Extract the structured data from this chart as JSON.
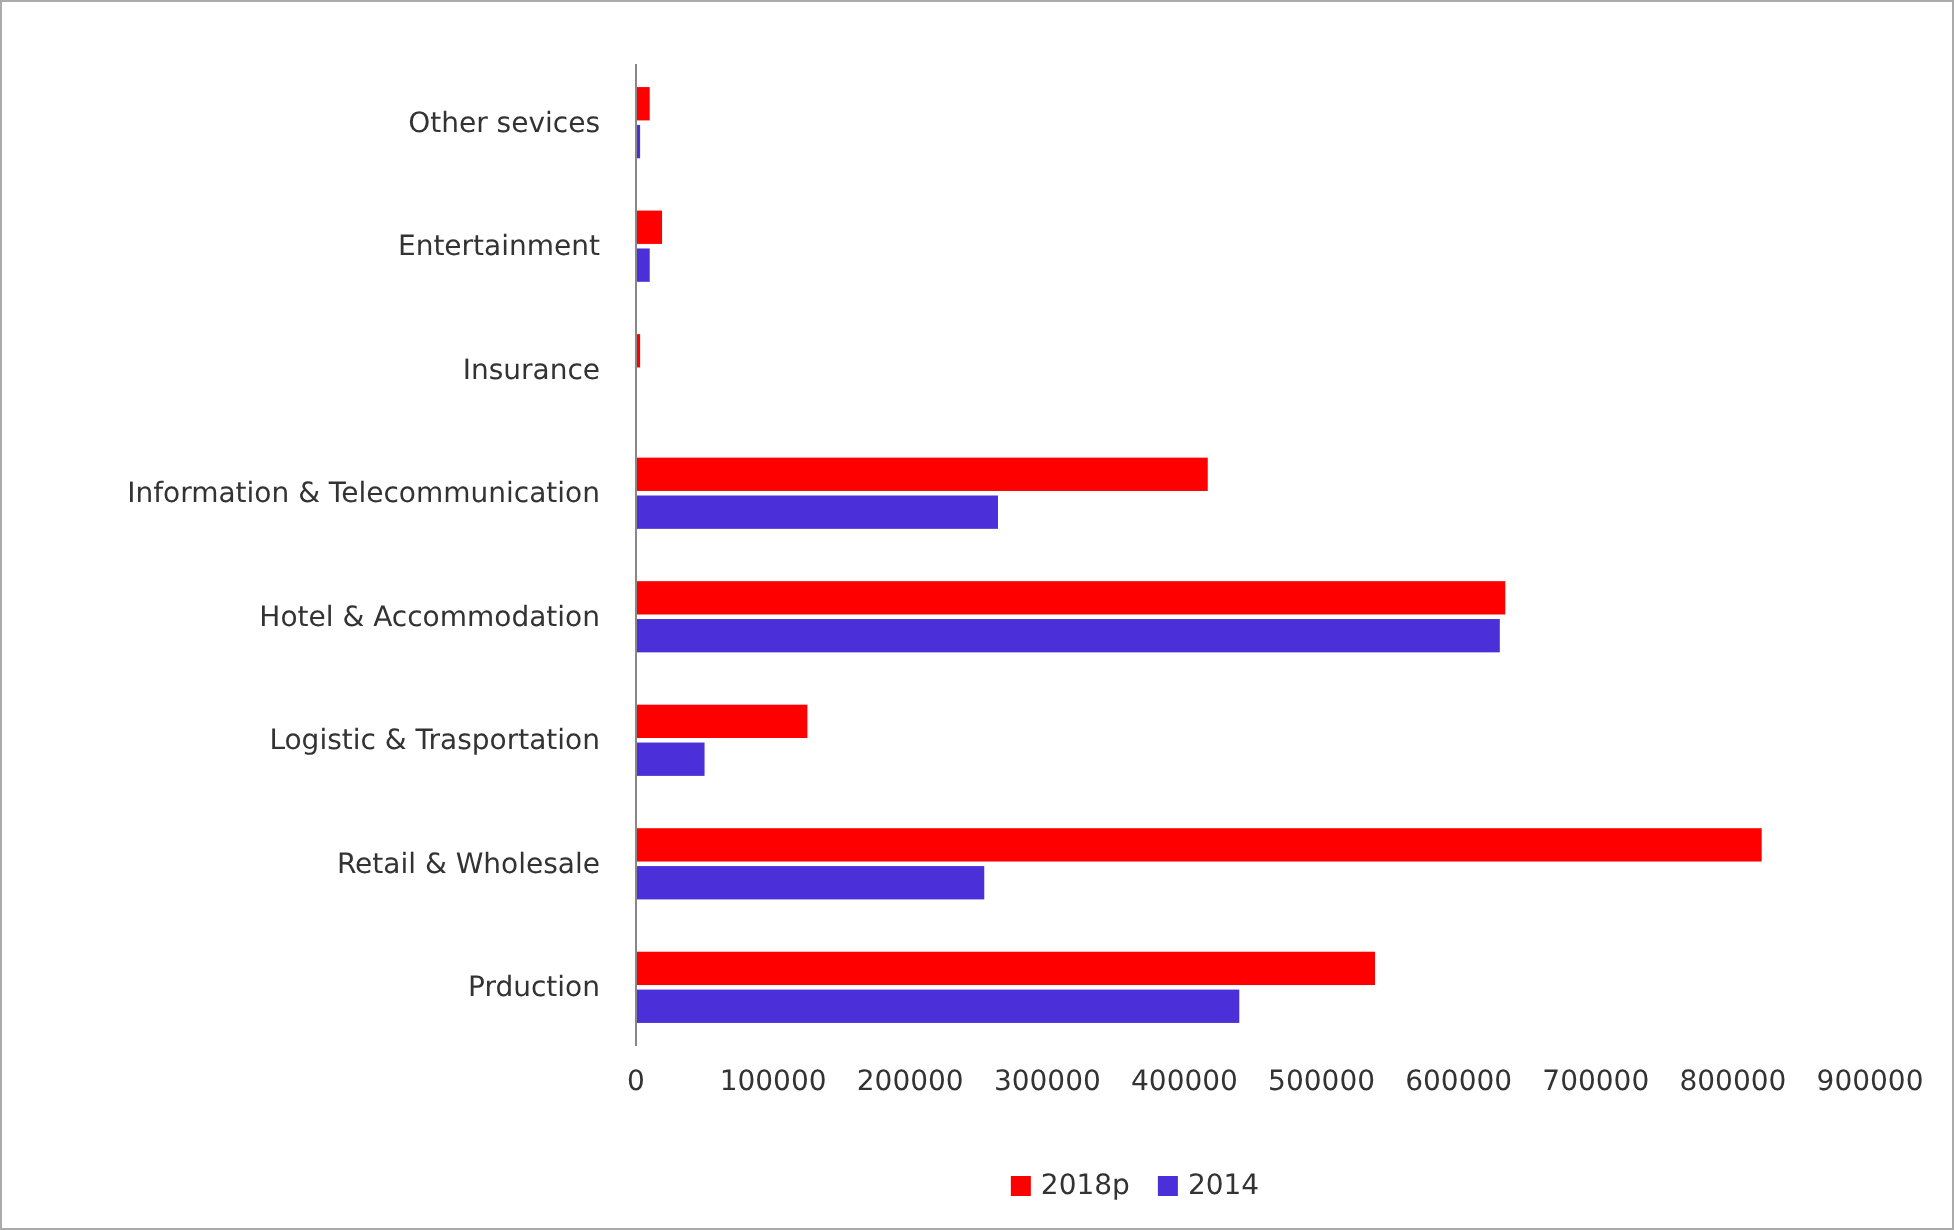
{
  "chart_data": {
    "type": "bar",
    "orientation": "horizontal",
    "categories": [
      "Other sevices",
      "Entertainment",
      "Insurance",
      "Information & Telecommunication",
      "Hotel & Accommodation",
      "Logistic & Trasportation",
      "Retail & Wholesale",
      "Prduction"
    ],
    "series": [
      {
        "name": "2018p",
        "color": "#ff0000",
        "values": [
          10000,
          19000,
          3000,
          417000,
          634000,
          125000,
          821000,
          539000
        ]
      },
      {
        "name": "2014",
        "color": "#4b2fd8",
        "values": [
          3000,
          10000,
          0,
          264000,
          630000,
          50000,
          254000,
          440000
        ]
      }
    ],
    "xlim": [
      0,
      900000
    ],
    "xticks": [
      0,
      100000,
      200000,
      300000,
      400000,
      500000,
      600000,
      700000,
      800000,
      900000
    ],
    "grid": false,
    "legend": "bottom"
  }
}
